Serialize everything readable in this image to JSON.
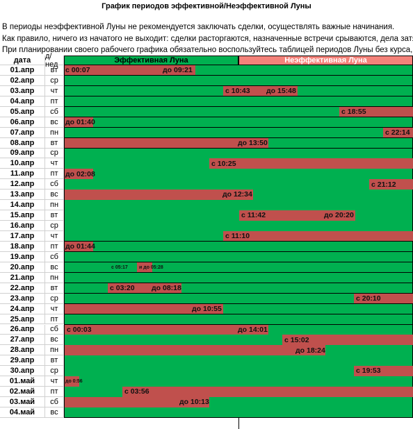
{
  "header": {
    "title": "График  периодов эффективной/Неэффективной Луны",
    "lines": [
      "В периоды неэффективной Луны не рекомендуется заключать сделки, осуществлять важные начинания.",
      "Как правило, ничего из начатого не выходит: сделки расторгаются, назначенные встречи срываются, дела затягиваются",
      "При планировании своего рабочего графика обязательно воспользуйтесь таблицей периодов Луны без курса, приводи"
    ]
  },
  "table": {
    "columns": [
      "дата",
      "д/нед",
      "Эффективная Луна",
      "Неэффективная Луна"
    ],
    "rows": [
      {
        "date": "01.апр",
        "dow": "вт",
        "labels": [
          "с 00:07",
          "до 09:21"
        ]
      },
      {
        "date": "02.апр",
        "dow": "ср",
        "labels": []
      },
      {
        "date": "03.апр",
        "dow": "чт",
        "labels": [
          "с 10:43",
          "до 15:48"
        ]
      },
      {
        "date": "04.апр",
        "dow": "пт",
        "labels": []
      },
      {
        "date": "05.апр",
        "dow": "сб",
        "labels": [
          "с 18:55"
        ]
      },
      {
        "date": "06.апр",
        "dow": "вс",
        "labels": [
          "до 01:40"
        ]
      },
      {
        "date": "07.апр",
        "dow": "пн",
        "labels": [
          "с 22:14"
        ]
      },
      {
        "date": "08.апр",
        "dow": "вт",
        "labels": [
          "до 13:50"
        ]
      },
      {
        "date": "09.апр",
        "dow": "ср",
        "labels": []
      },
      {
        "date": "10.апр",
        "dow": "чт",
        "labels": [
          "с 10:25"
        ]
      },
      {
        "date": "11.апр",
        "dow": "пт",
        "labels": [
          "до 02:08"
        ]
      },
      {
        "date": "12.апр",
        "dow": "сб",
        "labels": [
          "с 21:12"
        ]
      },
      {
        "date": "13.апр",
        "dow": "вс",
        "labels": [
          "до 12:34"
        ]
      },
      {
        "date": "14.апр",
        "dow": "пн",
        "labels": []
      },
      {
        "date": "15.апр",
        "dow": "вт",
        "labels": [
          "с 11:42",
          "до 20:20"
        ]
      },
      {
        "date": "16.апр",
        "dow": "ср",
        "labels": []
      },
      {
        "date": "17.апр",
        "dow": "чт",
        "labels": [
          "с 11:10"
        ]
      },
      {
        "date": "18.апр",
        "dow": "пт",
        "labels": [
          "до 01:44"
        ]
      },
      {
        "date": "19.апр",
        "dow": "сб",
        "labels": []
      },
      {
        "date": "20.апр",
        "dow": "вс",
        "labels": [
          "с 05:17",
          "и до 05:28"
        ]
      },
      {
        "date": "21.апр",
        "dow": "пн",
        "labels": []
      },
      {
        "date": "22.апр",
        "dow": "вт",
        "labels": [
          "с 03:20",
          "до 08:18"
        ]
      },
      {
        "date": "23.апр",
        "dow": "ср",
        "labels": [
          "с 20:10"
        ]
      },
      {
        "date": "24.апр",
        "dow": "чт",
        "labels": [
          "до  10:55"
        ]
      },
      {
        "date": "25.апр",
        "dow": "пт",
        "labels": []
      },
      {
        "date": "26.апр",
        "dow": "сб",
        "labels": [
          "с 00:03",
          "до 14:01"
        ]
      },
      {
        "date": "27.апр",
        "dow": "вс",
        "labels": [
          "с  15:02"
        ]
      },
      {
        "date": "28.апр",
        "dow": "пн",
        "labels": [
          "до 18:24"
        ]
      },
      {
        "date": "29.апр",
        "dow": "вт",
        "labels": []
      },
      {
        "date": "30.апр",
        "dow": "ср",
        "labels": [
          "с  19:53"
        ]
      },
      {
        "date": "01.май",
        "dow": "чт",
        "labels": [
          "до 0:56"
        ]
      },
      {
        "date": "02.май",
        "dow": "пт",
        "labels": [
          "с 03:56"
        ]
      },
      {
        "date": "03.май",
        "dow": "сб",
        "labels": [
          "до 10:13"
        ]
      },
      {
        "date": "04.май",
        "dow": "вс",
        "labels": []
      }
    ]
  }
}
